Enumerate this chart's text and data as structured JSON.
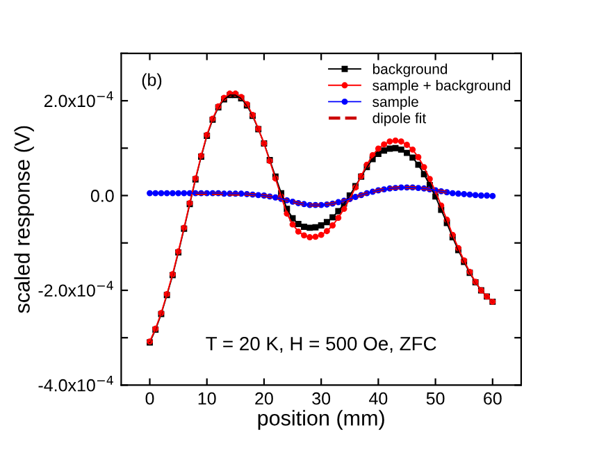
{
  "chart_data": {
    "type": "line",
    "xlabel": "position (mm)",
    "ylabel": "scaled response (V)",
    "annotations": [
      "(b)",
      "T = 20 K, H = 500 Oe, ZFC"
    ],
    "x": [
      0,
      1,
      2,
      3,
      4,
      5,
      6,
      7,
      8,
      9,
      10,
      11,
      12,
      13,
      14,
      15,
      16,
      17,
      18,
      19,
      20,
      21,
      22,
      23,
      24,
      25,
      26,
      27,
      28,
      29,
      30,
      31,
      32,
      33,
      34,
      35,
      36,
      37,
      38,
      39,
      40,
      41,
      42,
      43,
      44,
      45,
      46,
      47,
      48,
      49,
      50,
      51,
      52,
      53,
      54,
      55,
      56,
      57,
      58,
      59,
      60
    ],
    "series": [
      {
        "name": "background",
        "color": "#000000",
        "marker": "square",
        "line_style": "solid",
        "values": [
          -0.00031,
          -0.000283,
          -0.00025,
          -0.00021,
          -0.000168,
          -0.00012,
          -7e-05,
          -1.8e-05,
          3.4e-05,
          8.2e-05,
          0.000126,
          0.00016,
          0.000186,
          0.000203,
          0.000212,
          0.000212,
          0.000205,
          0.00019,
          0.000168,
          0.00014,
          0.00011,
          7.5e-05,
          4e-05,
          5e-06,
          -2.8e-05,
          -4.8e-05,
          -6e-05,
          -6.6e-05,
          -6.8e-05,
          -6.7e-05,
          -6.3e-05,
          -5.6e-05,
          -4.6e-05,
          -3.3e-05,
          -1.7e-05,
          0.0,
          2e-05,
          4e-05,
          6e-05,
          7.7e-05,
          8.8e-05,
          9.5e-05,
          9.9e-05,
          0.0001,
          9.7e-05,
          9e-05,
          8e-05,
          6.5e-05,
          4.5e-05,
          2.2e-05,
          -2e-06,
          -3e-05,
          -5.8e-05,
          -8.8e-05,
          -0.000115,
          -0.00014,
          -0.000163,
          -0.000183,
          -0.0002,
          -0.000213,
          -0.000224
        ]
      },
      {
        "name": "sample + background",
        "color": "#ff0000",
        "marker": "circle",
        "line_style": "solid",
        "values": [
          -0.000308,
          -0.000281,
          -0.000248,
          -0.000208,
          -0.000166,
          -0.000118,
          -6.8e-05,
          -1.6e-05,
          3.6e-05,
          8.4e-05,
          0.000128,
          0.000162,
          0.000188,
          0.000206,
          0.000215,
          0.000215,
          0.000208,
          0.000193,
          0.00017,
          0.000141,
          0.00011,
          7.3e-05,
          3.6e-05,
          -2e-06,
          -3.8e-05,
          -6.1e-05,
          -7.6e-05,
          -8.4e-05,
          -8.8e-05,
          -8.7e-05,
          -8.3e-05,
          -7.5e-05,
          -6.3e-05,
          -4.7e-05,
          -2.8e-05,
          -7e-06,
          1.7e-05,
          4.1e-05,
          6.5e-05,
          8.5e-05,
          9.9e-05,
          0.000108,
          0.000114,
          0.000116,
          0.000114,
          0.000107,
          9.7e-05,
          8.1e-05,
          6e-05,
          3.5e-05,
          9e-06,
          -2.1e-05,
          -5.1e-05,
          -8.3e-05,
          -0.000111,
          -0.000137,
          -0.000161,
          -0.000182,
          -0.0002,
          -0.000213,
          -0.000224
        ]
      },
      {
        "name": "sample",
        "color": "#0000ff",
        "marker": "circle",
        "line_style": "solid",
        "values": [
          5e-06,
          5e-06,
          5e-06,
          5e-06,
          5e-06,
          5e-06,
          5e-06,
          5e-06,
          5e-06,
          5e-06,
          5e-06,
          5e-06,
          5e-06,
          4e-06,
          4e-06,
          4e-06,
          4e-06,
          3e-06,
          2e-06,
          1e-06,
          0.0,
          -2e-06,
          -4e-06,
          -7e-06,
          -1e-05,
          -1.3e-05,
          -1.6e-05,
          -1.8e-05,
          -2e-05,
          -2e-05,
          -2e-05,
          -1.9e-05,
          -1.7e-05,
          -1.4e-05,
          -1.1e-05,
          -7e-06,
          -3e-06,
          1e-06,
          5e-06,
          8e-06,
          1.1e-05,
          1.3e-05,
          1.5e-05,
          1.6e-05,
          1.7e-05,
          1.7e-05,
          1.7e-05,
          1.6e-05,
          1.5e-05,
          1.3e-05,
          1.1e-05,
          9e-06,
          7e-06,
          5e-06,
          4e-06,
          3e-06,
          2e-06,
          1e-06,
          0.0,
          0.0,
          -1e-06
        ]
      },
      {
        "name": "dipole fit",
        "color": "#cc0000",
        "marker": "none",
        "line_style": "dashed",
        "x": [
          8,
          10,
          12,
          14,
          16,
          18,
          20,
          22,
          24,
          26,
          28,
          30,
          32,
          34,
          36,
          38,
          40,
          42,
          44,
          46,
          48,
          50,
          52
        ],
        "values": [
          4e-06,
          4e-06,
          4e-06,
          3e-06,
          3e-06,
          2e-06,
          0.0,
          -4e-06,
          -1e-05,
          -1.6e-05,
          -2e-05,
          -2e-05,
          -1.7e-05,
          -1.1e-05,
          -3e-06,
          5e-06,
          1.1e-05,
          1.5e-05,
          1.7e-05,
          1.7e-05,
          1.5e-05,
          1.1e-05,
          7e-06
        ]
      }
    ],
    "xlim": [
      -5,
      65
    ],
    "xticks": [
      0,
      10,
      20,
      30,
      40,
      50,
      60
    ],
    "ylim": [
      -0.0004,
      0.0003
    ],
    "yticks": [
      {
        "value": -0.0004,
        "label": "-4.0x10$^{−4}$"
      },
      {
        "value": -0.0003,
        "label": null
      },
      {
        "value": -0.0002,
        "label": "-2.0x10$^{−4}$"
      },
      {
        "value": -0.0001,
        "label": null
      },
      {
        "value": 0,
        "label": "0.0"
      },
      {
        "value": 0.0001,
        "label": null
      },
      {
        "value": 0.0002,
        "label": "2.0x10$^{−4}$"
      },
      {
        "value": 0.0003,
        "label": null
      }
    ],
    "grid": false,
    "legend": "top right"
  }
}
